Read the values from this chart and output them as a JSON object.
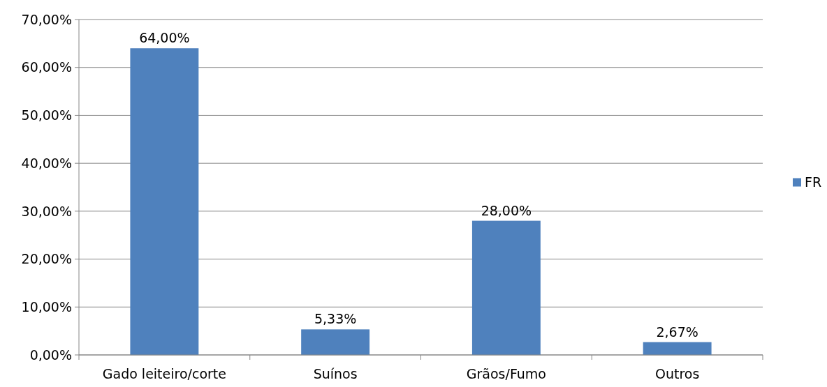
{
  "chart_data": {
    "type": "bar",
    "categories": [
      "Gado leiteiro/corte",
      "Suínos",
      "Grãos/Fumo",
      "Outros"
    ],
    "series": [
      {
        "name": "FR",
        "color": "#4f81bd",
        "values": [
          64,
          5.33,
          28,
          2.67
        ],
        "value_labels": [
          "64,00%",
          "5,33%",
          "28,00%",
          "2,67%"
        ]
      }
    ],
    "ylim": [
      0,
      70
    ],
    "yticks": [
      {
        "value": 0,
        "label": "0,00%"
      },
      {
        "value": 10,
        "label": "10,00%"
      },
      {
        "value": 20,
        "label": "20,00%"
      },
      {
        "value": 30,
        "label": "30,00%"
      },
      {
        "value": 40,
        "label": "40,00%"
      },
      {
        "value": 50,
        "label": "50,00%"
      },
      {
        "value": 60,
        "label": "60,00%"
      },
      {
        "value": 70,
        "label": "70,00%"
      }
    ],
    "grid": "y",
    "legend": "right"
  }
}
